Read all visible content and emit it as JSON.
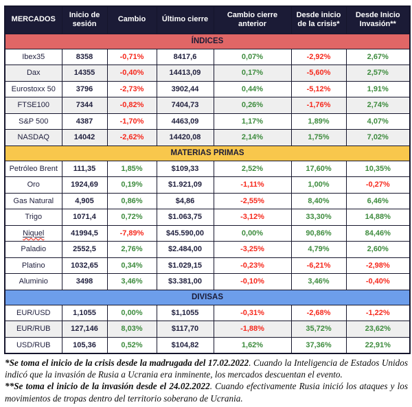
{
  "table": {
    "columns": [
      "MERCADOS",
      "Inicio de sesión",
      "Cambio",
      "Último cierre",
      "Cambio cierre anterior",
      "Desde inicio de la crisis*",
      "Desde Inicio Invasión**"
    ],
    "sections": [
      {
        "title": "ÍNDICES",
        "color": "#e06666",
        "rows": [
          {
            "name": "Ibex35",
            "values": [
              "8358",
              "-0,71%",
              "8417,6",
              "0,07%",
              "-2,92%",
              "2,67%"
            ]
          },
          {
            "name": "Dax",
            "values": [
              "14355",
              "-0,40%",
              "14413,09",
              "0,17%",
              "-5,60%",
              "2,57%"
            ]
          },
          {
            "name": "Eurostoxx 50",
            "values": [
              "3796",
              "-2,73%",
              "3902,44",
              "0,44%",
              "-5,12%",
              "1,91%"
            ]
          },
          {
            "name": "FTSE100",
            "values": [
              "7344",
              "-0,82%",
              "7404,73",
              "0,26%",
              "-1,76%",
              "2,74%"
            ]
          },
          {
            "name": "S&P 500",
            "values": [
              "4387",
              "-1,70%",
              "4463,09",
              "1,17%",
              "1,89%",
              "4,07%"
            ]
          },
          {
            "name": "NASDAQ",
            "values": [
              "14042",
              "-2,62%",
              "14420,08",
              "2,14%",
              "1,75%",
              "7,02%"
            ]
          }
        ]
      },
      {
        "title": "MATERIAS PRIMAS",
        "color": "#f8c74c",
        "rows": [
          {
            "name": "Petróleo Brent",
            "values": [
              "111,35",
              "1,85%",
              "$109,33",
              "2,52%",
              "17,60%",
              "10,35%"
            ]
          },
          {
            "name": "Oro",
            "values": [
              "1924,69",
              "0,19%",
              "$1.921,09",
              "-1,11%",
              "1,00%",
              "-0,27%"
            ]
          },
          {
            "name": "Gas Natural",
            "values": [
              "4,905",
              "0,86%",
              "$4,86",
              "-2,55%",
              "8,40%",
              "6,46%"
            ]
          },
          {
            "name": "Trigo",
            "values": [
              "1071,4",
              "0,72%",
              "$1.063,75",
              "-3,12%",
              "33,30%",
              "14,88%"
            ]
          },
          {
            "name": "Niquel",
            "values": [
              "41994,5",
              "-7,89%",
              "$45.590,00",
              "0,00%",
              "90,86%",
              "84,46%"
            ],
            "misspelled": true
          },
          {
            "name": "Paladio",
            "values": [
              "2552,5",
              "2,76%",
              "$2.484,00",
              "-3,25%",
              "4,79%",
              "2,60%"
            ]
          },
          {
            "name": "Platino",
            "values": [
              "1032,65",
              "0,34%",
              "$1.029,15",
              "-0,23%",
              "-6,21%",
              "-2,98%"
            ]
          },
          {
            "name": "Aluminio",
            "values": [
              "3498",
              "3,46%",
              "$3.381,00",
              "-0,10%",
              "3,46%",
              "-0,40%"
            ]
          }
        ]
      },
      {
        "title": "DIVISAS",
        "color": "#6d9eeb",
        "rows": [
          {
            "name": "EUR/USD",
            "values": [
              "1,1055",
              "0,00%",
              "$1,1055",
              "-0,31%",
              "-2,68%",
              "-1,22%"
            ]
          },
          {
            "name": "EUR/RUB",
            "values": [
              "127,146",
              "8,03%",
              "$117,70",
              "-1,88%",
              "35,72%",
              "23,62%"
            ]
          },
          {
            "name": "USD/RUB",
            "values": [
              "105,36",
              "0,52%",
              "$104,82",
              "1,62%",
              "37,36%",
              "22,91%"
            ]
          }
        ]
      }
    ]
  },
  "footnotes": [
    {
      "lead": "*Se toma el inicio de la crisis desde la madrugada del 17.02.2022",
      "rest": ". Cuando la Inteligencia de Estados Unidos indicó que la invasión de Rusia a Ucrania era inminente, los mercados descuentan el evento."
    },
    {
      "lead": "**Se toma el inicio de la invasión desde el 24.02.2022",
      "rest": ". Cuando efectivamente Rusia inició los ataques y los movimientos de tropas dentro del territorio soberano de Ucrania."
    }
  ],
  "colors": {
    "header_bg": "#1b1b36",
    "header_text": "#ffffff",
    "body_text": "#20203e",
    "positive": "#3d8b3d",
    "negative": "#f6281c",
    "band_indices": "#e06666",
    "band_commodities": "#f8c74c",
    "band_currencies": "#6d9eeb",
    "row_alt": "#efefef",
    "border": "#15152c"
  }
}
